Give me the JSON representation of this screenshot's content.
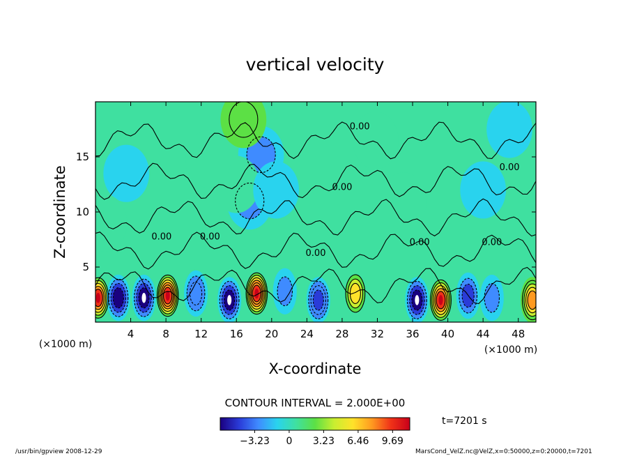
{
  "chart_data": {
    "type": "heatmap",
    "title": "vertical velocity",
    "xlabel": "X-coordinate",
    "ylabel": "Z-coordinate",
    "x_unit_left": "(×1000 m)",
    "x_unit_right": "(×1000 m)",
    "xlim": [
      0,
      50
    ],
    "ylim": [
      0,
      20
    ],
    "x_ticks": [
      "4",
      "8",
      "12",
      "16",
      "20",
      "24",
      "28",
      "32",
      "36",
      "40",
      "44",
      "48"
    ],
    "y_ticks": [
      "5",
      "10",
      "15"
    ],
    "contour_interval_label": "CONTOUR INTERVAL = 2.000E+00",
    "contour_label": "0.00",
    "colorbar": {
      "ticks": [
        "−3.23",
        "0",
        "3.23",
        "6.46",
        "9.69"
      ],
      "tick_values": [
        -3.23,
        0,
        3.23,
        6.46,
        9.69
      ],
      "range": [
        -6.46,
        11.3
      ],
      "colors": [
        "#1a0080",
        "#2a3bd8",
        "#3f8bff",
        "#29d3ee",
        "#3fe0a0",
        "#5ce045",
        "#c8ee30",
        "#ffe22a",
        "#ff9a20",
        "#f03218",
        "#c8001a"
      ]
    },
    "time_label": "t=7201 s",
    "footer_left": "/usr/bin/gpview   2008-12-29",
    "footer_right": "MarsCond_VelZ.nc@VelZ,x=0:50000,z=0:20000,t=7201",
    "cells": [
      {
        "x": 0.3,
        "z": 2.2,
        "w": 9.0
      },
      {
        "x": 2.6,
        "z": 2.2,
        "w": -6.0
      },
      {
        "x": 5.5,
        "z": 2.2,
        "w": -6.4
      },
      {
        "x": 8.2,
        "z": 2.4,
        "w": 9.7
      },
      {
        "x": 11.4,
        "z": 2.6,
        "w": -3.5
      },
      {
        "x": 15.2,
        "z": 2.0,
        "w": -6.4
      },
      {
        "x": 18.3,
        "z": 2.6,
        "w": 9.7
      },
      {
        "x": 21.5,
        "z": 2.8,
        "w": -2.5
      },
      {
        "x": 25.3,
        "z": 2.0,
        "w": -5.0
      },
      {
        "x": 29.5,
        "z": 2.6,
        "w": 5.5
      },
      {
        "x": 36.5,
        "z": 2.0,
        "w": -6.4
      },
      {
        "x": 39.2,
        "z": 2.0,
        "w": 9.0
      },
      {
        "x": 42.3,
        "z": 2.4,
        "w": -4.0
      },
      {
        "x": 45.0,
        "z": 2.2,
        "w": -3.0
      },
      {
        "x": 49.6,
        "z": 2.0,
        "w": 8.0
      }
    ],
    "blobs": [
      {
        "x": 17.5,
        "z": 11.0,
        "w": -2.2
      },
      {
        "x": 18.8,
        "z": 15.2,
        "w": -2.4
      },
      {
        "x": 16.0,
        "z": 12.5,
        "w": 1.4
      },
      {
        "x": 20.5,
        "z": 12.0,
        "w": -1.6
      },
      {
        "x": 16.8,
        "z": 18.4,
        "w": 3.2
      },
      {
        "x": 12.8,
        "z": 14.8,
        "w": 1.1
      },
      {
        "x": 31.8,
        "z": 16.5,
        "w": 0.8
      },
      {
        "x": 3.5,
        "z": 13.5,
        "w": -0.8
      },
      {
        "x": 47.0,
        "z": 17.5,
        "w": -0.9
      },
      {
        "x": 1.0,
        "z": 9.0,
        "w": 0.8
      },
      {
        "x": 35.0,
        "z": 11.0,
        "w": 0.7
      },
      {
        "x": 44.0,
        "z": 12.0,
        "w": -0.7
      }
    ],
    "contour_label_spots": [
      {
        "x": 30.0,
        "z": 17.5
      },
      {
        "x": 47.0,
        "z": 13.8
      },
      {
        "x": 28.0,
        "z": 12.0
      },
      {
        "x": 7.5,
        "z": 7.5
      },
      {
        "x": 13.0,
        "z": 7.5
      },
      {
        "x": 25.0,
        "z": 6.0
      },
      {
        "x": 36.8,
        "z": 7.0
      },
      {
        "x": 45.0,
        "z": 7.0
      }
    ]
  }
}
